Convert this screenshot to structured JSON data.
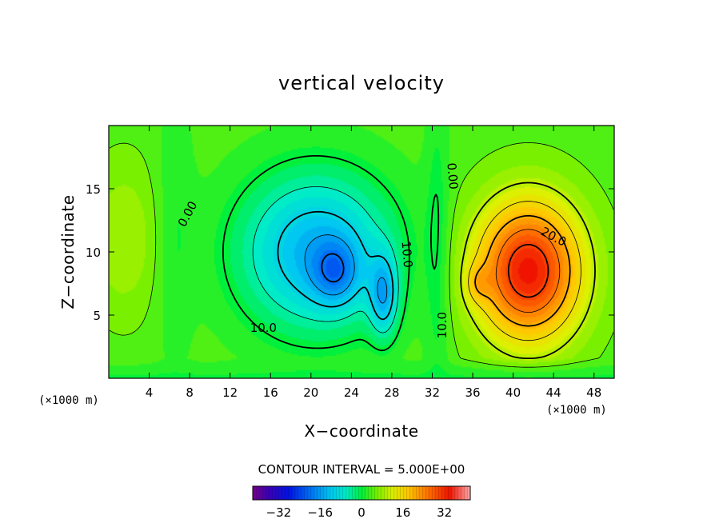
{
  "chart_data": {
    "type": "contour",
    "title": "vertical velocity",
    "xlabel": "X−coordinate",
    "ylabel": "Z−coordinate",
    "x_unit_left": "(×1000 m)",
    "x_unit_right": "(×1000 m)",
    "xlim": [
      0,
      50
    ],
    "ylim": [
      0,
      20
    ],
    "x_ticks": [
      4,
      8,
      12,
      16,
      20,
      24,
      28,
      32,
      36,
      40,
      44,
      48
    ],
    "y_ticks": [
      5,
      10,
      15
    ],
    "contour_interval_text": "CONTOUR INTERVAL = 5.000E+00",
    "colorbar": {
      "range": [
        -42,
        42
      ],
      "tick_values": [
        -32,
        -16,
        0,
        16,
        32
      ],
      "tick_labels": [
        "−32",
        "−16",
        "0",
        "16",
        "32"
      ]
    },
    "features": [
      {
        "kind": "downdraft",
        "center": [
          22.5,
          8.3
        ],
        "min_value": -22
      },
      {
        "kind": "downdraft",
        "center": [
          27.2,
          6.5
        ],
        "min_value": -18
      },
      {
        "kind": "updraft",
        "center": [
          41.5,
          8.5
        ],
        "max_value": 32
      },
      {
        "kind": "updraft",
        "center": [
          1.5,
          11
        ],
        "max_value": 7
      }
    ],
    "contour_labels": [
      {
        "text": "0.00",
        "x": 7.8,
        "y": 13.0,
        "rotation": -62
      },
      {
        "text": "0.00",
        "x": 34.0,
        "y": 16.0,
        "rotation": 85
      },
      {
        "text": "20.0",
        "x": 44.0,
        "y": 11.2,
        "rotation": 28
      },
      {
        "text": "10.0",
        "x": 15.3,
        "y": 4.0,
        "rotation": 0
      },
      {
        "text": "10.0",
        "x": 29.5,
        "y": 9.8,
        "rotation": 85
      },
      {
        "text": "10.0",
        "x": 33.0,
        "y": 4.2,
        "rotation": -90
      }
    ]
  }
}
